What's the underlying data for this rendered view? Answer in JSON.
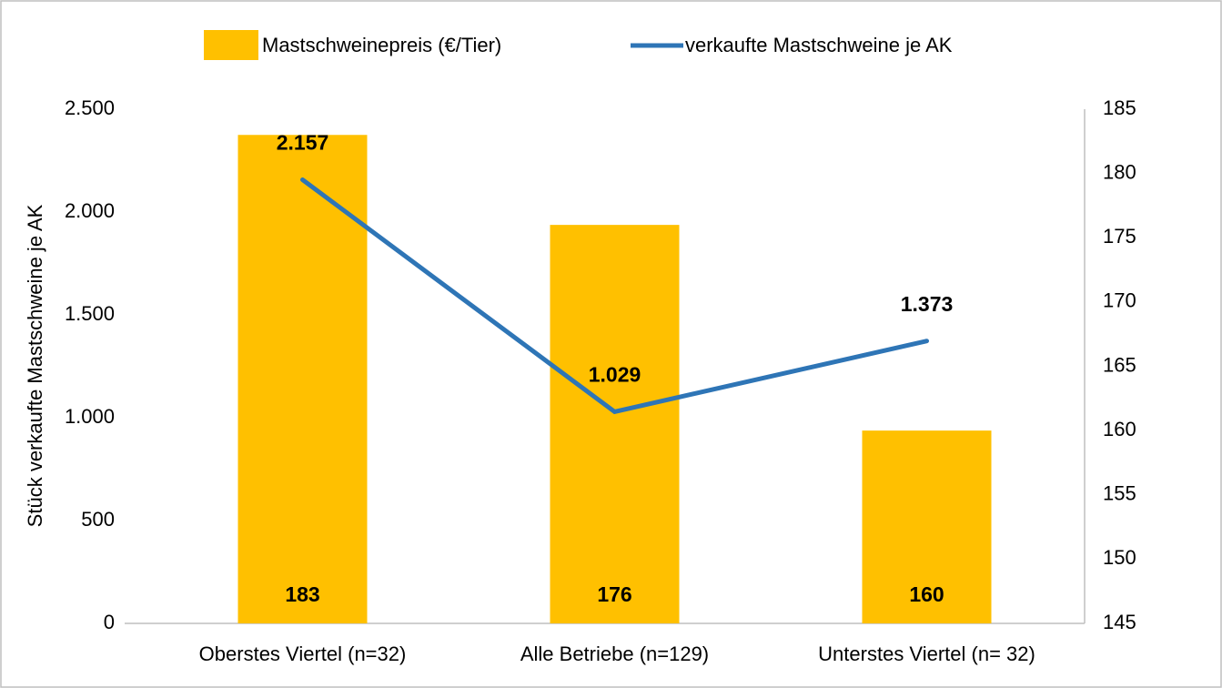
{
  "chart_data": {
    "type": "bar",
    "categories": [
      "Oberstes Viertel (n=32)",
      "Alle Betriebe (n=129)",
      "Unterstes Viertel (n= 32)"
    ],
    "series": [
      {
        "name": "Mastschweinepreis (€/Tier)",
        "type": "bar",
        "color": "#ffc000",
        "axis": "y2",
        "values": [
          183,
          176,
          160
        ]
      },
      {
        "name": "verkaufte Mastschweine je AK",
        "type": "line",
        "color": "#2e75b6",
        "values": [
          2157,
          1029,
          1373
        ],
        "value_labels": [
          "2.157",
          "1.029",
          "1.373"
        ]
      }
    ],
    "ylabel": "Stück verkaufte Mastschweine je AK",
    "ylim": [
      0,
      2500
    ],
    "yticks": [
      0,
      500,
      {
        "value": 1000,
        "label": "1.000"
      },
      {
        "value": 1500,
        "label": "1.500"
      },
      {
        "value": 2000,
        "label": "2.000"
      },
      {
        "value": 2500,
        "label": "2.500"
      }
    ],
    "y2lim": [
      145,
      185
    ],
    "y2ticks": [
      145,
      150,
      155,
      160,
      165,
      170,
      175,
      180,
      185
    ]
  }
}
